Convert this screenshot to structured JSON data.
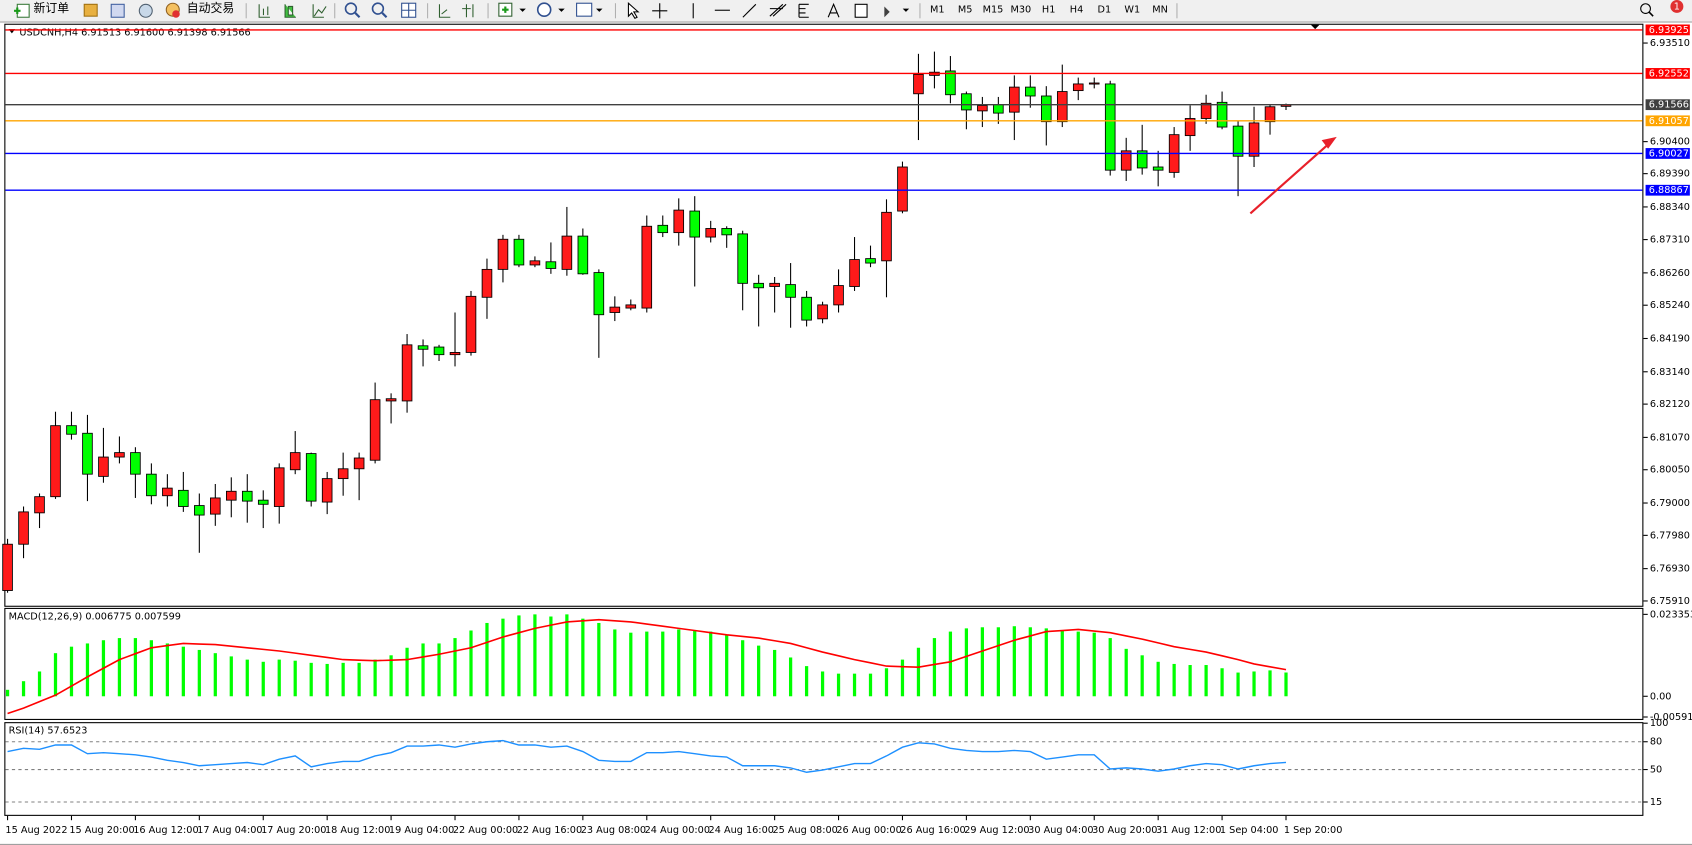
{
  "toolbar": {
    "buttons": [
      "新订单",
      "自动交易"
    ],
    "timeframes": [
      "M1",
      "M5",
      "M15",
      "M30",
      "H1",
      "H4",
      "D1",
      "W1",
      "MN"
    ]
  },
  "alerts": 1,
  "chart_data": [
    {
      "type": "candlestick",
      "title": "USDCNH,H4  6.91513 6.91600 6.91398 6.91566",
      "categories": [
        "15 Aug 2022",
        null,
        null,
        null,
        "15 Aug 20:00",
        null,
        null,
        null,
        "16 Aug 12:00",
        null,
        null,
        null,
        "17 Aug 04:00",
        null,
        null,
        null,
        "17 Aug 20:00",
        null,
        null,
        null,
        "18 Aug 12:00",
        null,
        null,
        null,
        "19 Aug 04:00",
        null,
        null,
        null,
        "22 Aug 00:00",
        null,
        null,
        null,
        "22 Aug 16:00",
        null,
        null,
        null,
        "23 Aug 08:00",
        null,
        null,
        null,
        "24 Aug 00:00",
        null,
        null,
        null,
        "24 Aug 16:00",
        null,
        null,
        null,
        "25 Aug 08:00",
        null,
        null,
        null,
        "26 Aug 00:00",
        null,
        null,
        null,
        "26 Aug 16:00",
        null,
        null,
        null,
        "29 Aug 12:00",
        null,
        null,
        null,
        "30 Aug 04:00",
        null,
        null,
        null,
        "30 Aug 20:00",
        null,
        null,
        null,
        "31 Aug 12:00",
        null,
        null,
        null,
        "1 Sep 04:00",
        null,
        null,
        null,
        "1 Sep 20:00"
      ],
      "open": [
        6.7624,
        6.777,
        6.7869,
        6.792,
        6.8144,
        6.812,
        6.7984,
        6.8045,
        6.8059,
        6.7991,
        6.7923,
        6.794,
        6.7892,
        6.7865,
        6.7909,
        6.7937,
        6.7909,
        6.7889,
        6.8005,
        6.8056,
        6.7903,
        6.7977,
        6.8008,
        6.8035,
        6.8222,
        6.8222,
        6.8396,
        6.8392,
        6.8368,
        6.8375,
        6.8549,
        6.8637,
        6.8732,
        6.8651,
        6.8661,
        6.8637,
        6.8742,
        6.8627,
        6.8501,
        6.8515,
        6.8515,
        6.8776,
        6.8753,
        6.8821,
        6.8739,
        6.8766,
        6.8749,
        6.8593,
        6.8583,
        6.8589,
        6.8549,
        6.8481,
        6.8525,
        6.8583,
        6.8671,
        6.8664,
        6.8821,
        6.9191,
        6.9249,
        6.9263,
        6.9191,
        6.9137,
        6.9157,
        6.9133,
        6.9212,
        6.9184,
        6.9103,
        6.9201,
        6.9222,
        6.9222,
        6.895,
        6.9011,
        6.896,
        6.8943,
        6.9059,
        6.9113,
        6.9164,
        6.9089,
        6.8994,
        6.9103,
        6.91513
      ],
      "high": [
        6.7787,
        6.7889,
        6.793,
        6.8188,
        6.8188,
        6.8178,
        6.8137,
        6.811,
        6.8076,
        6.8025,
        6.7991,
        6.7998,
        6.793,
        6.796,
        6.7981,
        6.7991,
        6.794,
        6.8025,
        6.8127,
        6.8059,
        6.7998,
        6.8059,
        6.8059,
        6.828,
        6.8246,
        6.8433,
        6.8416,
        6.8399,
        6.8501,
        6.8569,
        6.8671,
        6.8746,
        6.8746,
        6.8678,
        6.8722,
        6.8834,
        6.8766,
        6.8637,
        6.8552,
        6.8542,
        6.8807,
        6.8807,
        6.8861,
        6.8868,
        6.879,
        6.8773,
        6.8759,
        6.862,
        6.8613,
        6.8657,
        6.8569,
        6.8535,
        6.8637,
        6.8739,
        6.8712,
        6.8858,
        6.8977,
        6.9317,
        6.9324,
        6.931,
        6.9198,
        6.9181,
        6.9181,
        6.9249,
        6.9249,
        6.9215,
        6.9283,
        6.9242,
        6.9242,
        6.9232,
        6.9052,
        6.9093,
        6.9011,
        6.9086,
        6.9154,
        6.9188,
        6.9198,
        6.9106,
        6.915,
        6.9157,
        6.916
      ],
      "low": [
        6.7617,
        6.7726,
        6.7821,
        6.7913,
        6.81,
        6.7906,
        6.7964,
        6.8025,
        6.7916,
        6.7896,
        6.7889,
        6.7872,
        6.7743,
        6.7828,
        6.7855,
        6.7838,
        6.7821,
        6.7835,
        6.7991,
        6.7889,
        6.7865,
        6.7923,
        6.7909,
        6.8025,
        6.8151,
        6.8185,
        6.8331,
        6.8348,
        6.8331,
        6.8365,
        6.8481,
        6.8596,
        6.8644,
        6.8644,
        6.8623,
        6.8617,
        6.862,
        6.8358,
        6.8474,
        6.8508,
        6.8501,
        6.8739,
        6.8712,
        6.8583,
        6.8722,
        6.8705,
        6.8508,
        6.8457,
        6.8501,
        6.8453,
        6.8457,
        6.8467,
        6.8501,
        6.8569,
        6.8644,
        6.8549,
        6.8814,
        6.9045,
        6.9208,
        6.9161,
        6.9079,
        6.9086,
        6.9096,
        6.9045,
        6.9147,
        6.9028,
        6.9086,
        6.9171,
        6.9208,
        6.8933,
        6.8916,
        6.8936,
        6.8899,
        6.8926,
        6.9011,
        6.9096,
        6.9079,
        6.8868,
        6.896,
        6.9062,
        6.91398
      ],
      "close": [
        6.777,
        6.7872,
        6.792,
        6.8144,
        6.8117,
        6.7991,
        6.8045,
        6.8059,
        6.7991,
        6.7923,
        6.7947,
        6.7889,
        6.7862,
        6.7916,
        6.7937,
        6.7906,
        6.7896,
        6.8011,
        6.8059,
        6.7906,
        6.7977,
        6.8008,
        6.8042,
        6.8226,
        6.8229,
        6.8399,
        6.8385,
        6.8368,
        6.8375,
        6.8552,
        6.8637,
        6.8732,
        6.8651,
        6.8664,
        6.864,
        6.8742,
        6.8623,
        6.8494,
        6.8518,
        6.8525,
        6.8773,
        6.8753,
        6.8824,
        6.8739,
        6.8766,
        6.8746,
        6.8593,
        6.8579,
        6.8593,
        6.8549,
        6.8477,
        6.8525,
        6.8586,
        6.8668,
        6.8657,
        6.8817,
        6.896,
        6.9252,
        6.9259,
        6.9188,
        6.914,
        6.9154,
        6.913,
        6.9212,
        6.9184,
        6.9103,
        6.9198,
        6.9222,
        6.9225,
        6.895,
        6.9011,
        6.8957,
        6.895,
        6.9062,
        6.9113,
        6.9161,
        6.9086,
        6.8994,
        6.9099,
        6.915,
        6.91566
      ],
      "up_color": "#ff1a1a",
      "down_color": "#00ff00",
      "ylim": [
        6.7576,
        6.9412
      ],
      "yticks": [
        {
          "value": 6.9351,
          "label": "6.93510"
        },
        {
          "value": 6.904,
          "label": "6.90400"
        },
        {
          "value": 6.8939,
          "label": "6.89390"
        },
        {
          "value": 6.8834,
          "label": "6.88340"
        },
        {
          "value": 6.8731,
          "label": "6.87310"
        },
        {
          "value": 6.8626,
          "label": "6.86260"
        },
        {
          "value": 6.8524,
          "label": "6.85240"
        },
        {
          "value": 6.8419,
          "label": "6.84190"
        },
        {
          "value": 6.8314,
          "label": "6.83140"
        },
        {
          "value": 6.8212,
          "label": "6.82120"
        },
        {
          "value": 6.8107,
          "label": "6.81070"
        },
        {
          "value": 6.8005,
          "label": "6.80050"
        },
        {
          "value": 6.79,
          "label": "6.79000"
        },
        {
          "value": 6.7798,
          "label": "6.77980"
        },
        {
          "value": 6.7693,
          "label": "6.76930"
        },
        {
          "value": 6.7591,
          "label": "6.75910"
        }
      ],
      "levels": [
        {
          "value": 6.93925,
          "color": "#ff0000"
        },
        {
          "value": 6.92552,
          "color": "#ff0000"
        },
        {
          "value": 6.91566,
          "color": "#404040"
        },
        {
          "value": 6.91057,
          "color": "#ffa500"
        },
        {
          "value": 6.90027,
          "color": "#0000ff"
        },
        {
          "value": 6.88867,
          "color": "#0000ff"
        }
      ]
    },
    {
      "type": "macd",
      "title": "MACD(12,26,9) 0.006775 0.007599",
      "series": [
        {
          "type": "bar",
          "color": "#00ff00",
          "values": [
            0.00184,
            0.0043,
            0.00707,
            0.01229,
            0.01414,
            0.01506,
            0.01598,
            0.01659,
            0.01659,
            0.01598,
            0.01506,
            0.01414,
            0.01321,
            0.01229,
            0.01137,
            0.01045,
            0.00983,
            0.01045,
            0.01014,
            0.00953,
            0.00922,
            0.00953,
            0.00953,
            0.01045,
            0.01168,
            0.01383,
            0.01506,
            0.01506,
            0.01659,
            0.01875,
            0.0209,
            0.02213,
            0.02305,
            0.02335,
            0.02274,
            0.02335,
            0.02213,
            0.0209,
            0.01905,
            0.01813,
            0.01844,
            0.01844,
            0.01905,
            0.01875,
            0.01844,
            0.01752,
            0.01598,
            0.01444,
            0.01321,
            0.01106,
            0.0086,
            0.00707,
            0.00645,
            0.00645,
            0.00645,
            0.00799,
            0.01045,
            0.01383,
            0.01659,
            0.01844,
            0.01936,
            0.01967,
            0.01967,
            0.01997,
            0.01967,
            0.01936,
            0.01875,
            0.01844,
            0.01813,
            0.01659,
            0.01352,
            0.01168,
            0.00983,
            0.00922,
            0.00891,
            0.00891,
            0.00799,
            0.00676,
            0.00707,
            0.00738,
            0.006775
          ]
        },
        {
          "type": "line",
          "color": "#ff0000",
          "values": [
            -0.00492,
            -0.00338,
            -0.00154,
            0.00031,
            0.00292,
            0.00553,
            0.00799,
            0.01045,
            0.01214,
            0.01383,
            0.01445,
            0.01506,
            0.0149,
            0.01475,
            0.01429,
            0.01383,
            0.01337,
            0.01291,
            0.0123,
            0.01168,
            0.01107,
            0.01045,
            0.0103,
            0.01014,
            0.0103,
            0.01045,
            0.01122,
            0.01198,
            0.01291,
            0.01383,
            0.01537,
            0.0169,
            0.01813,
            0.01936,
            0.02028,
            0.0212,
            0.02151,
            0.02182,
            0.02151,
            0.0212,
            0.02059,
            0.01997,
            0.01936,
            0.01875,
            0.01814,
            0.01752,
            0.01706,
            0.01659,
            0.01583,
            0.01506,
            0.01383,
            0.0126,
            0.01153,
            0.01045,
            0.00953,
            0.0086,
            0.00845,
            0.0083,
            0.00907,
            0.00983,
            0.01137,
            0.01291,
            0.01445,
            0.01598,
            0.01721,
            0.01844,
            0.01875,
            0.01905,
            0.01859,
            0.01813,
            0.01721,
            0.01629,
            0.01522,
            0.01414,
            0.01337,
            0.0126,
            0.01153,
            0.01045,
            0.00922,
            0.00841,
            0.007599
          ]
        }
      ],
      "ylim": [
        -0.00645,
        0.0252
      ],
      "yticks": [
        0.023353,
        {
          "value": 0,
          "label": "0.00"
        },
        -0.00591
      ]
    },
    {
      "type": "line",
      "title": "RSI(14) 57.6523",
      "color": "#1e90ff",
      "values": [
        69.4,
        72.9,
        71.8,
        76.5,
        76.5,
        67.1,
        68.2,
        67.1,
        65.9,
        63.5,
        60.0,
        57.6,
        54.1,
        55.3,
        56.5,
        57.6,
        55.3,
        61.2,
        64.7,
        52.9,
        56.5,
        58.8,
        58.8,
        64.7,
        68.2,
        75.3,
        75.3,
        76.5,
        74.1,
        77.6,
        80.0,
        81.2,
        76.5,
        76.5,
        74.1,
        75.3,
        69.4,
        60.0,
        58.8,
        58.8,
        68.2,
        68.2,
        69.4,
        67.1,
        64.7,
        63.5,
        54.1,
        54.1,
        54.1,
        51.8,
        47.1,
        49.4,
        52.9,
        56.5,
        56.5,
        64.7,
        74.1,
        78.8,
        77.6,
        72.9,
        70.6,
        69.4,
        69.4,
        70.6,
        69.4,
        61.2,
        63.5,
        65.9,
        65.9,
        50.6,
        51.8,
        50.6,
        48.2,
        50.6,
        54.1,
        56.5,
        55.3,
        50.6,
        54.1,
        56.5,
        57.6523
      ],
      "ylim": [
        0,
        100
      ],
      "yticks": [
        100,
        80,
        50,
        15
      ],
      "grid": "dashed"
    }
  ]
}
